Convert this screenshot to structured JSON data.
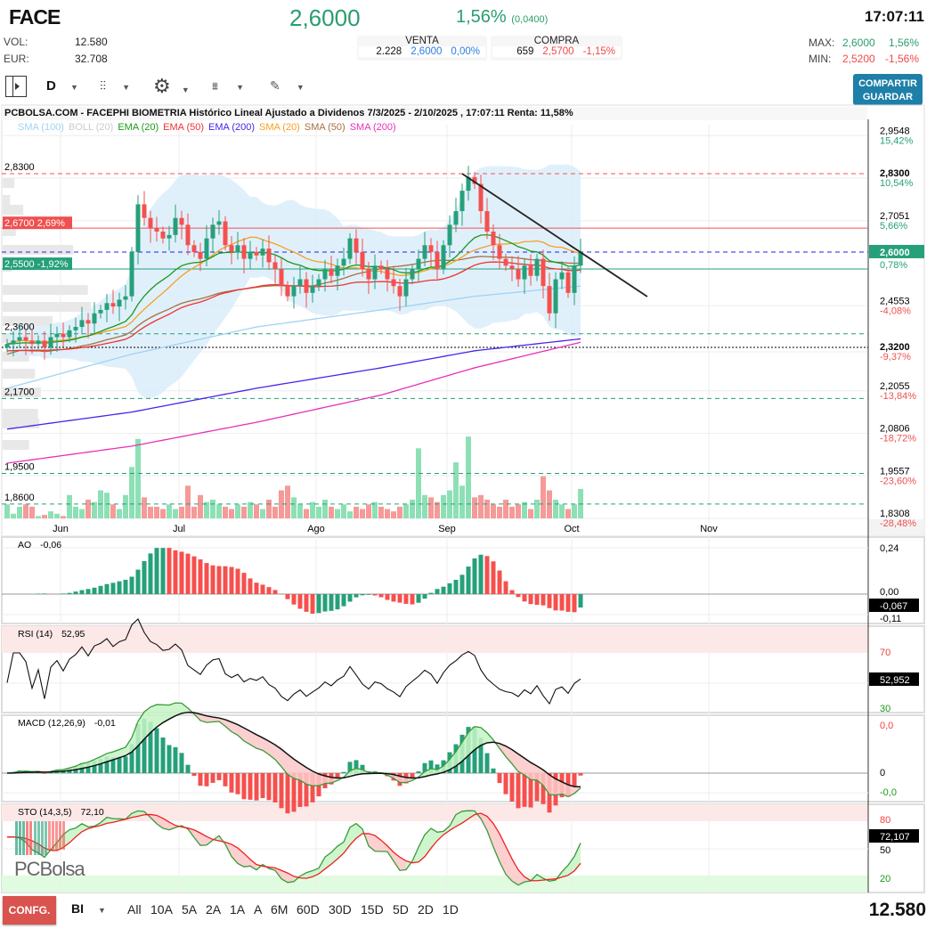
{
  "header": {
    "ticker": "FACE",
    "price": "2,6000",
    "change_pct": "1,56%",
    "change_abs": "(0,0400)",
    "time": "17:07:11",
    "vol_label": "VOL:",
    "vol": "12.580",
    "eur_label": "EUR:",
    "eur": "32.708",
    "venta": {
      "label": "VENTA",
      "qty": "2.228",
      "price": "2,6000",
      "pct": "0,00%"
    },
    "compra": {
      "label": "COMPRA",
      "qty": "659",
      "price": "2,5700",
      "pct": "-1,15%"
    },
    "max_label": "MAX:",
    "max": "2,6000",
    "max_pct": "1,56%",
    "min_label": "MIN:",
    "min": "2,5200",
    "min_pct": "-1,56%"
  },
  "toolbar": {
    "period": "D",
    "share_label": "COMPARTIR",
    "save_label": "GUARDAR"
  },
  "colors": {
    "up": "#26a07a",
    "down": "#f5504e",
    "accent": "#1e7fa8",
    "sma100": "#9fd3f5",
    "boll": "#cccccc",
    "ema20": "#1a9a1a",
    "ema50": "#ee3333",
    "ema200": "#4b22e8",
    "sma20": "#f5a020",
    "sma50": "#a87040",
    "sma200": "#e830b8"
  },
  "chart_title": "PCBOLSA.COM - FACEPHI BIOMETRIA Histórico Lineal Ajustado a Dividenos 7/3/2025 - 2/10/2025 , 17:07:11 Renta: 11,58%",
  "legend": [
    {
      "label": "SMA (100)",
      "color": "#9fd3f5"
    },
    {
      "label": "BOLL (20)",
      "color": "#cccccc"
    },
    {
      "label": "EMA (20)",
      "color": "#1a9a1a"
    },
    {
      "label": "EMA (50)",
      "color": "#ee3333"
    },
    {
      "label": "EMA (200)",
      "color": "#4b22e8"
    },
    {
      "label": "SMA (20)",
      "color": "#f5a020"
    },
    {
      "label": "SMA (50)",
      "color": "#a87040"
    },
    {
      "label": "SMA (200)",
      "color": "#e830b8"
    }
  ],
  "chart_data": {
    "type": "candlestick",
    "x_ticks": [
      {
        "label": "Jun",
        "index": 9
      },
      {
        "label": "Jul",
        "index": 28
      },
      {
        "label": "Ago",
        "index": 50
      },
      {
        "label": "Sep",
        "index": 71
      },
      {
        "label": "Oct",
        "index": 91
      },
      {
        "label": "Nov",
        "index": 113
      }
    ],
    "closes": [
      2.33,
      2.34,
      2.35,
      2.34,
      2.33,
      2.34,
      2.32,
      2.35,
      2.36,
      2.35,
      2.37,
      2.38,
      2.4,
      2.39,
      2.42,
      2.43,
      2.45,
      2.44,
      2.46,
      2.47,
      2.6,
      2.74,
      2.7,
      2.67,
      2.66,
      2.64,
      2.65,
      2.7,
      2.68,
      2.62,
      2.6,
      2.58,
      2.64,
      2.68,
      2.69,
      2.62,
      2.6,
      2.62,
      2.58,
      2.6,
      2.59,
      2.61,
      2.57,
      2.55,
      2.5,
      2.47,
      2.5,
      2.52,
      2.48,
      2.5,
      2.52,
      2.55,
      2.53,
      2.56,
      2.58,
      2.64,
      2.6,
      2.55,
      2.52,
      2.56,
      2.55,
      2.52,
      2.5,
      2.47,
      2.52,
      2.55,
      2.58,
      2.62,
      2.6,
      2.55,
      2.62,
      2.68,
      2.72,
      2.78,
      2.82,
      2.8,
      2.72,
      2.66,
      2.62,
      2.58,
      2.56,
      2.55,
      2.52,
      2.56,
      2.53,
      2.58,
      2.5,
      2.42,
      2.52,
      2.54,
      2.48,
      2.56,
      2.6
    ],
    "volumes": [
      6000,
      2000,
      5000,
      6000,
      5000,
      1000,
      1500,
      3000,
      2000,
      1000,
      10000,
      5000,
      4000,
      8000,
      7000,
      12000,
      11000,
      6000,
      4000,
      10000,
      22000,
      34000,
      9000,
      5000,
      5000,
      4000,
      6000,
      4000,
      5000,
      14000,
      5000,
      10000,
      7000,
      8000,
      6000,
      5000,
      4000,
      6000,
      5000,
      7000,
      6000,
      4000,
      8000,
      5000,
      12000,
      14000,
      9000,
      6000,
      4000,
      7000,
      5000,
      8000,
      5000,
      4000,
      6000,
      3000,
      5000,
      4000,
      6000,
      7000,
      5000,
      4000,
      3000,
      5000,
      6000,
      8000,
      30000,
      10000,
      9000,
      7000,
      10000,
      12000,
      24000,
      14000,
      35000,
      9000,
      10000,
      8000,
      6000,
      5000,
      8000,
      5000,
      6000,
      7000,
      4000,
      8000,
      18000,
      12000,
      8000,
      6000,
      4000,
      6000,
      12580
    ],
    "sma100": [
      [
        0,
        2.2
      ],
      [
        20,
        2.3
      ],
      [
        40,
        2.38
      ],
      [
        60,
        2.43
      ],
      [
        75,
        2.47
      ],
      [
        92,
        2.5
      ]
    ],
    "ema200": [
      [
        0,
        2.08
      ],
      [
        20,
        2.13
      ],
      [
        40,
        2.2
      ],
      [
        60,
        2.26
      ],
      [
        75,
        2.31
      ],
      [
        92,
        2.345
      ]
    ],
    "sma200": [
      [
        0,
        1.98
      ],
      [
        20,
        2.03
      ],
      [
        40,
        2.1
      ],
      [
        60,
        2.18
      ],
      [
        75,
        2.26
      ],
      [
        92,
        2.335
      ]
    ],
    "price_axis": [
      {
        "price": 2.9548,
        "label": "2,9548",
        "pct": "15,42%"
      },
      {
        "price": 2.83,
        "label": "2,8300",
        "pct": "10,54%",
        "bold": true
      },
      {
        "price": 2.7051,
        "label": "2,7051",
        "pct": "5,66%"
      },
      {
        "price": 2.4553,
        "label": "2,4553",
        "pct": "-4,08%"
      },
      {
        "price": 2.32,
        "label": "2,3200",
        "pct": "-9,37%",
        "bold": true
      },
      {
        "price": 2.2055,
        "label": "2,2055",
        "pct": "-13,84%"
      },
      {
        "price": 2.0806,
        "label": "2,0806",
        "pct": "-18,72%"
      },
      {
        "price": 1.9557,
        "label": "1,9557",
        "pct": "-23,60%"
      },
      {
        "price": 1.8308,
        "label": "1,8308",
        "pct": "-28,48%"
      }
    ],
    "current": {
      "price": 2.6,
      "label": "2,6000",
      "pct": "0,78%"
    },
    "levels": [
      {
        "price": 2.83,
        "label": "2,8300",
        "color": "#f05050",
        "style": "dashed"
      },
      {
        "price": 2.67,
        "label": "2,6700  2,69%",
        "color": "#f05050",
        "style": "solid",
        "tag": true
      },
      {
        "price": 2.6,
        "color": "#2020e0",
        "style": "dashed"
      },
      {
        "price": 2.55,
        "label": "2,5500  -1,92%",
        "color": "#26a07a",
        "style": "solid",
        "tag": true
      },
      {
        "price": 2.36,
        "label": "2,3600",
        "color": "#26a07a",
        "style": "dashed"
      },
      {
        "price": 2.32,
        "color": "#000",
        "style": "dotted"
      },
      {
        "price": 2.17,
        "label": "2,1700",
        "color": "#26a07a",
        "style": "dashed"
      },
      {
        "price": 1.95,
        "label": "1,9500",
        "color": "#26a07a",
        "style": "dashed"
      },
      {
        "price": 1.86,
        "label": "1,8600",
        "color": "#26a07a",
        "style": "dashed"
      }
    ],
    "trendline": {
      "from": [
        73,
        2.83
      ],
      "to": [
        102.7,
        2.469
      ]
    },
    "indicators": {
      "ao": {
        "label": "AO",
        "value": "-0,06",
        "readout": "-0,067",
        "ticks": [
          "0,24",
          "0,00",
          "-0,11"
        ]
      },
      "rsi": {
        "label": "RSI (14)",
        "value": "52,95",
        "readout": "52,952",
        "ticks": [
          "70",
          "30"
        ]
      },
      "macd": {
        "label": "MACD (12,26,9)",
        "value": "-0,01",
        "ticks": [
          "0,0",
          "0",
          "-0,0"
        ]
      },
      "sto": {
        "label": "STO (14,3,5)",
        "value": "72,10",
        "readout": "72,107",
        "ticks": [
          "80",
          "50",
          "20"
        ]
      }
    }
  },
  "bottom": {
    "config_label": "CONFG.",
    "mode": "BI",
    "ranges": [
      "All",
      "10A",
      "5A",
      "2A",
      "1A",
      "A",
      "6M",
      "60D",
      "30D",
      "15D",
      "5D",
      "2D",
      "1D"
    ],
    "volume": "12.580"
  },
  "watermark": "PCBolsa"
}
